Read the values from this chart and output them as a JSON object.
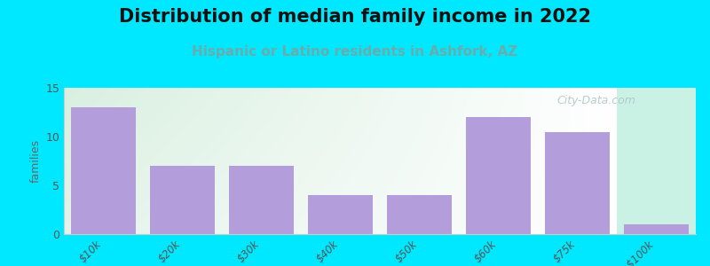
{
  "title": "Distribution of median family income in 2022",
  "subtitle": "Hispanic or Latino residents in Ashfork, AZ",
  "categories": [
    "$10k",
    "$20k",
    "$30k",
    "$40k",
    "$50k",
    "$60k",
    "$75k",
    ">$100k"
  ],
  "values": [
    13,
    7,
    7,
    4,
    4,
    12,
    10.5,
    1
  ],
  "bar_color": "#b39ddb",
  "background_color": "#00e8ff",
  "plot_bg_left": "#dff0e8",
  "plot_bg_right": "#f0f8ec",
  "last_bar_bg": "#eef4e0",
  "ylabel": "families",
  "ylim": [
    0,
    15
  ],
  "yticks": [
    0,
    5,
    10,
    15
  ],
  "title_fontsize": 15,
  "subtitle_fontsize": 11,
  "subtitle_color": "#6aacac",
  "watermark_text": "City-Data.com",
  "watermark_color": "#b0c4c4"
}
